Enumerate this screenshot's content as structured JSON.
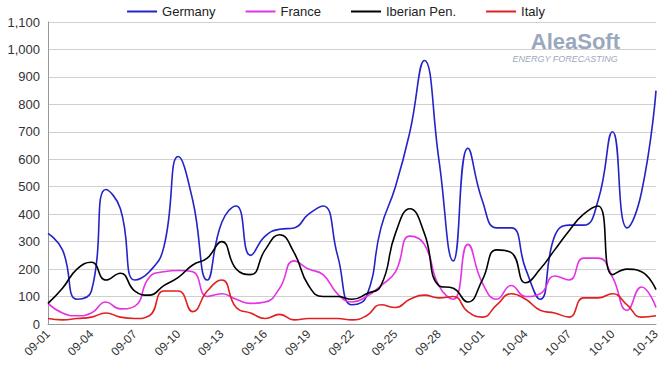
{
  "chart_data": {
    "type": "line",
    "categories": [
      "09-01",
      null,
      null,
      "09-04",
      null,
      null,
      "09-07",
      null,
      null,
      "09-10",
      null,
      null,
      "09-13",
      null,
      null,
      "09-16",
      null,
      null,
      "09-19",
      null,
      null,
      "09-22",
      null,
      null,
      "09-25",
      null,
      null,
      "09-28",
      null,
      null,
      "10-01",
      null,
      null,
      "10-04",
      null,
      null,
      "10-07",
      null,
      null,
      "10-10",
      null,
      null,
      "10-13"
    ],
    "series": [
      {
        "name": "Germany",
        "color": "#2323c8",
        "values": [
          330,
          270,
          90,
          120,
          490,
          420,
          160,
          190,
          280,
          610,
          450,
          160,
          370,
          430,
          250,
          320,
          345,
          350,
          400,
          430,
          250,
          70,
          100,
          350,
          500,
          700,
          960,
          600,
          230,
          640,
          450,
          350,
          350,
          200,
          90,
          320,
          360,
          360,
          450,
          700,
          350,
          480,
          850
        ]
      },
      {
        "name": "France",
        "color": "#e433e4",
        "values": [
          75,
          40,
          30,
          40,
          80,
          55,
          65,
          170,
          190,
          195,
          190,
          100,
          110,
          90,
          75,
          80,
          130,
          230,
          200,
          180,
          110,
          80,
          100,
          140,
          190,
          320,
          290,
          140,
          90,
          290,
          150,
          90,
          140,
          100,
          110,
          175,
          160,
          240,
          240,
          170,
          50,
          135,
          60
        ]
      },
      {
        "name": "Iberian Pen.",
        "color": "#000000",
        "values": [
          75,
          130,
          200,
          225,
          160,
          185,
          120,
          105,
          140,
          170,
          215,
          240,
          300,
          200,
          180,
          270,
          325,
          260,
          140,
          100,
          100,
          90,
          110,
          140,
          330,
          420,
          330,
          140,
          130,
          80,
          160,
          270,
          260,
          150,
          200,
          270,
          340,
          400,
          430,
          180,
          200,
          190,
          125
        ]
      },
      {
        "name": "Italy",
        "color": "#e02020",
        "values": [
          20,
          15,
          20,
          25,
          40,
          25,
          20,
          30,
          120,
          120,
          45,
          120,
          160,
          60,
          40,
          20,
          35,
          15,
          20,
          20,
          20,
          15,
          30,
          70,
          60,
          90,
          105,
          95,
          100,
          45,
          25,
          70,
          110,
          90,
          50,
          40,
          25,
          95,
          95,
          110,
          70,
          25,
          30
        ]
      }
    ],
    "ylim": [
      0,
      1100
    ],
    "yticks": [
      0,
      100,
      200,
      300,
      400,
      500,
      600,
      700,
      800,
      900,
      1000,
      1100
    ],
    "grid": true,
    "legend": "top",
    "annotations": [
      "AleaSoft",
      "ENERGY FORECASTING"
    ]
  }
}
